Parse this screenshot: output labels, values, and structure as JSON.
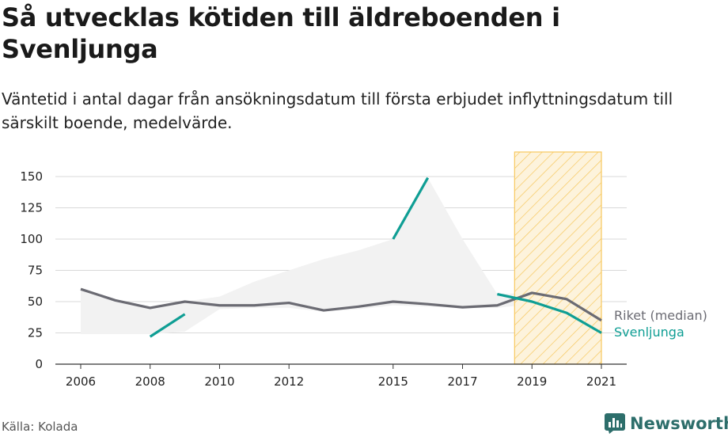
{
  "title": "Så utvecklas kötiden till äldreboenden i Svenljunga",
  "subtitle": "Väntetid i antal dagar från ansökningsdatum till första erbjudet inflyttningsdatum till särskilt boende, medelvärde.",
  "source": "Källa: Kolada",
  "brand": "Newsworthy",
  "colors": {
    "riket": "#6b6b73",
    "svenljunga": "#0f9e94",
    "range": "#f2f2f2",
    "highlight": "#f7c85e"
  },
  "chart_data": {
    "type": "line",
    "x": [
      2006,
      2007,
      2008,
      2009,
      2010,
      2011,
      2012,
      2013,
      2014,
      2015,
      2016,
      2017,
      2018,
      2019,
      2020,
      2021
    ],
    "x_ticks": [
      2006,
      2008,
      2010,
      2012,
      2015,
      2017,
      2019,
      2021
    ],
    "y_ticks": [
      0,
      25,
      50,
      75,
      100,
      125,
      150
    ],
    "ylim": [
      0,
      150
    ],
    "xlim": [
      2006,
      2021
    ],
    "grid": true,
    "series": [
      {
        "name": "Riket (median)",
        "values": [
          60,
          51,
          45,
          50,
          47,
          47,
          49,
          43,
          46,
          50,
          48,
          45.5,
          47,
          57,
          52,
          35
        ]
      },
      {
        "name": "Svenljunga",
        "values": [
          null,
          null,
          22,
          40,
          null,
          null,
          null,
          null,
          null,
          100,
          149,
          null,
          56,
          50,
          41,
          25
        ]
      }
    ],
    "range_band": {
      "x": [
        2006,
        2007,
        2008,
        2009,
        2010,
        2011,
        2012,
        2013,
        2014,
        2015,
        2016,
        2017,
        2018,
        2019,
        2020,
        2021
      ],
      "low": [
        24,
        24,
        24,
        26,
        44,
        45,
        45,
        42,
        44,
        47,
        46,
        45,
        45,
        48,
        47,
        34
      ],
      "high": [
        60,
        51,
        45,
        50,
        54,
        66,
        75,
        84,
        91,
        100,
        149,
        100,
        56,
        57,
        52,
        35
      ]
    },
    "highlight_range": [
      2018.5,
      2021
    ]
  }
}
